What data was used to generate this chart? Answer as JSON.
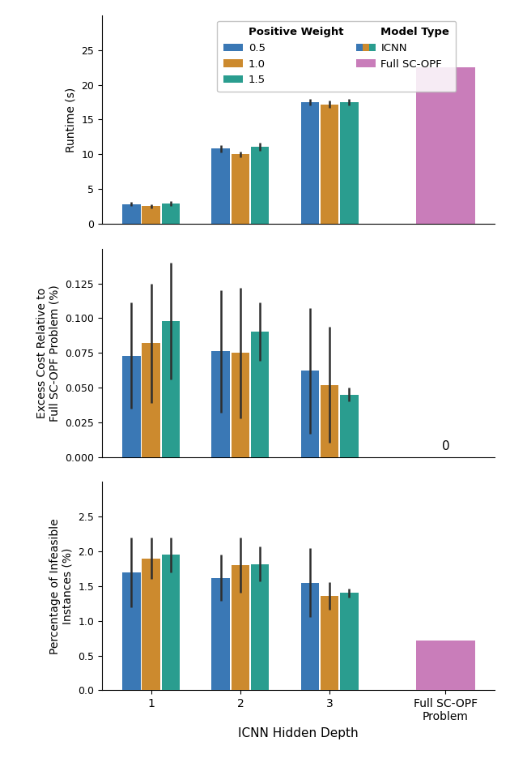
{
  "colors": {
    "blue": "#3a78b5",
    "orange": "#cc8a2e",
    "teal": "#2a9d8f",
    "pink": "#c97dba"
  },
  "xlabel": "ICNN Hidden Depth",
  "plot1": {
    "ylabel": "Runtime (s)",
    "bar_values": {
      "depth1": [
        2.8,
        2.5,
        2.9
      ],
      "depth2": [
        10.8,
        10.0,
        11.1
      ],
      "depth3": [
        17.5,
        17.2,
        17.5
      ]
    },
    "bar_errors": {
      "depth1": [
        0.3,
        0.3,
        0.3
      ],
      "depth2": [
        0.5,
        0.4,
        0.6
      ],
      "depth3": [
        0.5,
        0.5,
        0.5
      ]
    },
    "full_value": 22.5,
    "ylim": [
      0,
      30
    ],
    "yticks": [
      0,
      5,
      10,
      15,
      20,
      25
    ]
  },
  "plot2": {
    "ylabel": "Excess Cost Relative to\nFull SC-OPF Problem (%)",
    "bar_values": {
      "depth1": [
        0.073,
        0.082,
        0.098
      ],
      "depth2": [
        0.076,
        0.075,
        0.09
      ],
      "depth3": [
        0.062,
        0.052,
        0.045
      ]
    },
    "bar_errors": {
      "depth1": [
        0.038,
        0.043,
        0.042
      ],
      "depth2": [
        0.044,
        0.047,
        0.021
      ],
      "depth3": [
        0.045,
        0.042,
        0.005
      ]
    },
    "full_annotation": "0",
    "ylim": [
      0,
      0.15
    ],
    "yticks": [
      0.0,
      0.025,
      0.05,
      0.075,
      0.1,
      0.125
    ]
  },
  "plot3": {
    "ylabel": "Percentage of Infeasible\nInstances (%)",
    "bar_values": {
      "depth1": [
        1.7,
        1.9,
        1.95
      ],
      "depth2": [
        1.62,
        1.8,
        1.82
      ],
      "depth3": [
        1.55,
        1.36,
        1.4
      ]
    },
    "bar_errors": {
      "depth1": [
        0.5,
        0.3,
        0.25
      ],
      "depth2": [
        0.33,
        0.4,
        0.25
      ],
      "depth3": [
        0.5,
        0.2,
        0.06
      ]
    },
    "full_value": 0.72,
    "ylim": [
      0,
      3.0
    ],
    "yticks": [
      0.0,
      0.5,
      1.0,
      1.5,
      2.0,
      2.5
    ]
  }
}
